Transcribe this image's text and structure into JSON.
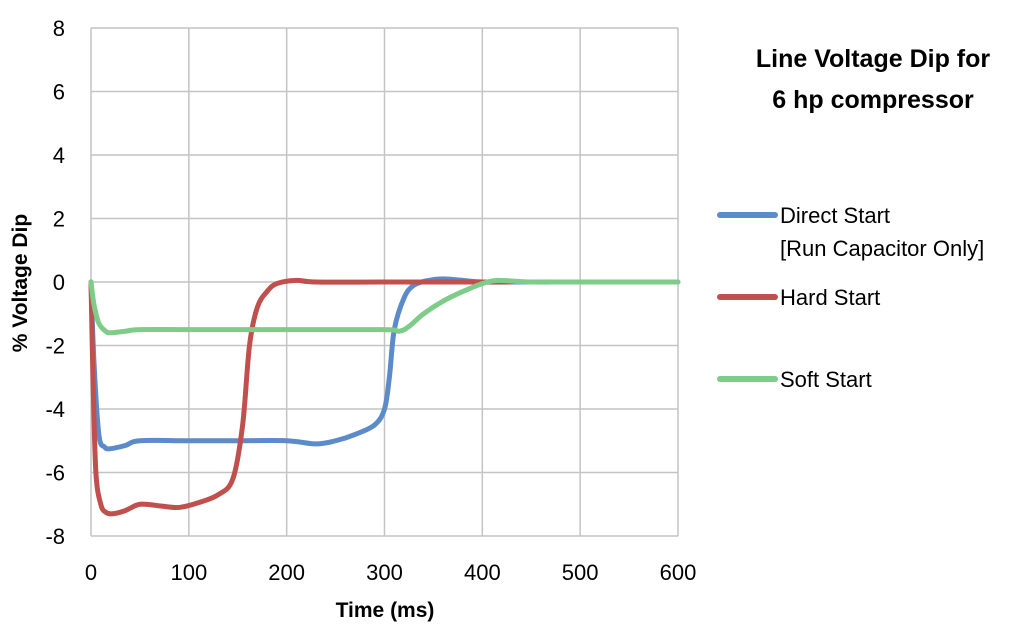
{
  "chart_data": {
    "type": "line",
    "title_lines": [
      "Line Voltage Dip for",
      "6 hp compressor"
    ],
    "xlabel": "Time (ms)",
    "ylabel": "% Voltage Dip",
    "xlim": [
      0,
      600
    ],
    "ylim": [
      -8,
      8
    ],
    "x_ticks": [
      0,
      100,
      200,
      300,
      400,
      500,
      600
    ],
    "y_ticks": [
      8,
      6,
      4,
      2,
      0,
      -2,
      -4,
      -6,
      -8
    ],
    "grid": true,
    "legend_position": "right",
    "series": [
      {
        "name_lines": [
          "Direct Start",
          "[Run Capacitor Only]"
        ],
        "color": "#5b8bc9",
        "points": [
          [
            0,
            0
          ],
          [
            3,
            -2.5
          ],
          [
            8,
            -4.8
          ],
          [
            14,
            -5.2
          ],
          [
            20,
            -5.25
          ],
          [
            35,
            -5.15
          ],
          [
            50,
            -5.0
          ],
          [
            100,
            -5.0
          ],
          [
            150,
            -5.0
          ],
          [
            200,
            -5.0
          ],
          [
            230,
            -5.1
          ],
          [
            250,
            -5.0
          ],
          [
            270,
            -4.8
          ],
          [
            290,
            -4.5
          ],
          [
            300,
            -4.0
          ],
          [
            305,
            -3.0
          ],
          [
            310,
            -1.5
          ],
          [
            320,
            -0.5
          ],
          [
            330,
            -0.1
          ],
          [
            345,
            0.05
          ],
          [
            360,
            0.1
          ],
          [
            380,
            0.05
          ],
          [
            400,
            0
          ],
          [
            450,
            0
          ],
          [
            600,
            0
          ]
        ]
      },
      {
        "name_lines": [
          "Hard Start"
        ],
        "color": "#c0504d",
        "points": [
          [
            0,
            0
          ],
          [
            2,
            -3
          ],
          [
            5,
            -6
          ],
          [
            10,
            -7.0
          ],
          [
            15,
            -7.25
          ],
          [
            22,
            -7.3
          ],
          [
            35,
            -7.2
          ],
          [
            50,
            -7.0
          ],
          [
            70,
            -7.05
          ],
          [
            90,
            -7.1
          ],
          [
            110,
            -6.95
          ],
          [
            130,
            -6.7
          ],
          [
            145,
            -6.2
          ],
          [
            155,
            -4.5
          ],
          [
            162,
            -2.0
          ],
          [
            170,
            -0.8
          ],
          [
            180,
            -0.3
          ],
          [
            190,
            -0.05
          ],
          [
            210,
            0.05
          ],
          [
            230,
            0
          ],
          [
            300,
            0
          ],
          [
            400,
            0
          ],
          [
            430,
            0
          ]
        ]
      },
      {
        "name_lines": [
          "Soft Start"
        ],
        "color": "#7fcc8a",
        "points": [
          [
            0,
            0
          ],
          [
            3,
            -0.7
          ],
          [
            8,
            -1.3
          ],
          [
            15,
            -1.55
          ],
          [
            20,
            -1.6
          ],
          [
            35,
            -1.55
          ],
          [
            50,
            -1.5
          ],
          [
            100,
            -1.5
          ],
          [
            200,
            -1.5
          ],
          [
            300,
            -1.5
          ],
          [
            315,
            -1.55
          ],
          [
            325,
            -1.4
          ],
          [
            340,
            -1.0
          ],
          [
            360,
            -0.6
          ],
          [
            380,
            -0.3
          ],
          [
            400,
            -0.05
          ],
          [
            415,
            0.05
          ],
          [
            430,
            0.03
          ],
          [
            450,
            0
          ],
          [
            500,
            0
          ],
          [
            600,
            0
          ]
        ]
      }
    ]
  }
}
